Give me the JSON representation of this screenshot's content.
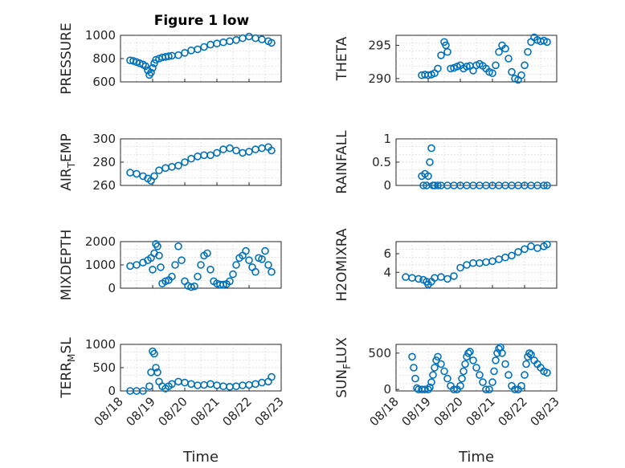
{
  "figure": {
    "title": "Figure 1 low",
    "marker_color": "#0072BD",
    "xlabel": "Time",
    "x_tick_labels": [
      "08/18",
      "08/19",
      "08/20",
      "08/21",
      "08/22",
      "08/23"
    ]
  },
  "chart_data": [
    {
      "type": "scatter",
      "ylabel": "PRESSURE",
      "title": "Figure 1 low",
      "xlim": [
        0,
        5
      ],
      "ylim": [
        600,
        1000
      ],
      "yticks": [
        600,
        800,
        1000
      ],
      "grid": true,
      "x": [
        0.3,
        0.4,
        0.5,
        0.6,
        0.7,
        0.78,
        0.85,
        0.9,
        0.95,
        1.0,
        1.05,
        1.1,
        1.2,
        1.3,
        1.4,
        1.5,
        1.6,
        1.8,
        2.0,
        2.2,
        2.4,
        2.6,
        2.8,
        3.0,
        3.2,
        3.4,
        3.6,
        3.8,
        4.0,
        4.2,
        4.4,
        4.6,
        4.7
      ],
      "y": [
        785,
        780,
        770,
        760,
        750,
        735,
        700,
        660,
        680,
        720,
        760,
        790,
        800,
        810,
        815,
        820,
        825,
        830,
        850,
        870,
        880,
        900,
        920,
        930,
        940,
        950,
        960,
        975,
        990,
        975,
        965,
        950,
        935
      ]
    },
    {
      "type": "scatter",
      "ylabel": "THETA",
      "xlim": [
        0,
        5
      ],
      "ylim": [
        289.5,
        296.5
      ],
      "yticks": [
        290,
        295
      ],
      "grid": true,
      "x": [
        0.8,
        0.9,
        1.0,
        1.1,
        1.2,
        1.3,
        1.4,
        1.5,
        1.55,
        1.6,
        1.7,
        1.8,
        1.9,
        2.0,
        2.1,
        2.2,
        2.3,
        2.4,
        2.5,
        2.6,
        2.7,
        2.8,
        2.9,
        3.0,
        3.1,
        3.2,
        3.3,
        3.4,
        3.5,
        3.6,
        3.7,
        3.8,
        3.9,
        4.0,
        4.1,
        4.2,
        4.3,
        4.4,
        4.5,
        4.6,
        4.7
      ],
      "y": [
        290.5,
        290.6,
        290.5,
        290.6,
        290.8,
        291.5,
        293.5,
        295.5,
        295.0,
        294.0,
        291.5,
        291.6,
        291.8,
        292.0,
        291.5,
        291.8,
        291.9,
        291.2,
        292.0,
        292.2,
        291.9,
        291.5,
        291.0,
        290.8,
        292.0,
        294.0,
        295.0,
        294.5,
        293.0,
        291.0,
        290.0,
        289.8,
        290.5,
        292.0,
        294.0,
        295.5,
        296.2,
        295.8,
        295.6,
        295.7,
        295.5
      ]
    },
    {
      "type": "scatter",
      "ylabel": "AIR_TEMP",
      "xlim": [
        0,
        5
      ],
      "ylim": [
        260,
        300
      ],
      "yticks": [
        260,
        280,
        300
      ],
      "grid": true,
      "x": [
        0.3,
        0.5,
        0.7,
        0.85,
        0.95,
        1.05,
        1.2,
        1.4,
        1.6,
        1.8,
        2.0,
        2.2,
        2.4,
        2.6,
        2.8,
        3.0,
        3.2,
        3.4,
        3.6,
        3.8,
        4.0,
        4.2,
        4.4,
        4.6,
        4.7
      ],
      "y": [
        271,
        270,
        268,
        266,
        264,
        268,
        273,
        275,
        276,
        277,
        280,
        283,
        285,
        286,
        286,
        288,
        291,
        292,
        290,
        288,
        289,
        291,
        292,
        293,
        290
      ]
    },
    {
      "type": "scatter",
      "ylabel": "RAINFALL",
      "xlim": [
        0,
        5
      ],
      "ylim": [
        0,
        1
      ],
      "yticks": [
        0,
        0.5,
        1
      ],
      "grid": true,
      "x": [
        0.8,
        0.85,
        0.9,
        0.95,
        1.0,
        1.05,
        1.1,
        1.15,
        1.2,
        1.3,
        1.4,
        1.6,
        1.8,
        2.0,
        2.2,
        2.4,
        2.6,
        2.8,
        3.0,
        3.2,
        3.4,
        3.6,
        3.8,
        4.0,
        4.2,
        4.4,
        4.6,
        4.7
      ],
      "y": [
        0.2,
        0,
        0.25,
        0,
        0.2,
        0.5,
        0.8,
        0,
        0,
        0,
        0,
        0,
        0,
        0,
        0,
        0,
        0,
        0,
        0,
        0,
        0,
        0,
        0,
        0,
        0,
        0,
        0,
        0
      ]
    },
    {
      "type": "scatter",
      "ylabel": "MIXDEPTH",
      "xlim": [
        0,
        5
      ],
      "ylim": [
        0,
        2000
      ],
      "yticks": [
        0,
        1000,
        2000
      ],
      "grid": true,
      "x": [
        0.3,
        0.5,
        0.7,
        0.85,
        0.95,
        1.0,
        1.05,
        1.1,
        1.15,
        1.2,
        1.25,
        1.3,
        1.4,
        1.5,
        1.6,
        1.7,
        1.8,
        1.9,
        2.0,
        2.1,
        2.2,
        2.3,
        2.4,
        2.5,
        2.6,
        2.7,
        2.8,
        2.9,
        3.0,
        3.1,
        3.2,
        3.3,
        3.4,
        3.5,
        3.6,
        3.7,
        3.8,
        3.9,
        4.0,
        4.1,
        4.2,
        4.3,
        4.4,
        4.5,
        4.6,
        4.7
      ],
      "y": [
        950,
        1000,
        1100,
        1200,
        1300,
        800,
        1500,
        1900,
        1800,
        1400,
        900,
        200,
        300,
        350,
        500,
        1000,
        1800,
        1200,
        300,
        100,
        50,
        80,
        500,
        1000,
        1400,
        1500,
        800,
        300,
        200,
        150,
        150,
        180,
        300,
        600,
        1000,
        1300,
        1400,
        1600,
        1200,
        900,
        700,
        1300,
        1250,
        1600,
        1000,
        700
      ]
    },
    {
      "type": "scatter",
      "ylabel": "H2OMIXRA",
      "xlim": [
        0,
        5
      ],
      "ylim": [
        2.3,
        7.3
      ],
      "yticks": [
        4,
        6
      ],
      "grid": true,
      "x": [
        0.3,
        0.5,
        0.7,
        0.85,
        0.95,
        1.0,
        1.1,
        1.2,
        1.4,
        1.6,
        1.8,
        2.0,
        2.2,
        2.4,
        2.6,
        2.8,
        3.0,
        3.2,
        3.4,
        3.6,
        3.8,
        4.0,
        4.2,
        4.4,
        4.6,
        4.7
      ],
      "y": [
        3.5,
        3.4,
        3.3,
        3.2,
        3.0,
        2.7,
        3.0,
        3.4,
        3.5,
        3.3,
        3.6,
        4.5,
        4.8,
        5.0,
        5.0,
        5.1,
        5.2,
        5.4,
        5.6,
        5.8,
        6.2,
        6.5,
        6.8,
        6.6,
        6.8,
        7.0
      ]
    },
    {
      "type": "scatter",
      "ylabel": "TERR_MSL",
      "xlim": [
        0,
        5
      ],
      "ylim": [
        0,
        1000
      ],
      "yticks": [
        0,
        500,
        1000
      ],
      "grid": true,
      "x": [
        0.3,
        0.5,
        0.7,
        0.9,
        0.95,
        1.0,
        1.05,
        1.1,
        1.15,
        1.2,
        1.3,
        1.4,
        1.5,
        1.6,
        1.8,
        2.0,
        2.2,
        2.4,
        2.6,
        2.8,
        3.0,
        3.2,
        3.4,
        3.6,
        3.8,
        4.0,
        4.2,
        4.4,
        4.6,
        4.7
      ],
      "y": [
        0,
        0,
        0,
        100,
        400,
        850,
        800,
        500,
        400,
        200,
        100,
        50,
        100,
        150,
        200,
        180,
        150,
        120,
        130,
        150,
        120,
        100,
        90,
        100,
        120,
        130,
        150,
        180,
        200,
        300
      ]
    },
    {
      "type": "scatter",
      "ylabel": "SUN_FLUX",
      "xlim": [
        0,
        5
      ],
      "ylim": [
        -20,
        620
      ],
      "yticks": [
        0,
        500
      ],
      "grid": true,
      "x": [
        0.5,
        0.55,
        0.6,
        0.65,
        0.7,
        0.8,
        0.9,
        1.0,
        1.05,
        1.1,
        1.15,
        1.2,
        1.25,
        1.3,
        1.4,
        1.5,
        1.6,
        1.7,
        1.8,
        1.9,
        2.0,
        2.05,
        2.1,
        2.15,
        2.2,
        2.25,
        2.3,
        2.4,
        2.5,
        2.6,
        2.7,
        2.8,
        2.9,
        3.0,
        3.05,
        3.1,
        3.15,
        3.2,
        3.25,
        3.3,
        3.4,
        3.5,
        3.6,
        3.7,
        3.8,
        3.9,
        4.0,
        4.05,
        4.1,
        4.15,
        4.2,
        4.3,
        4.4,
        4.5,
        4.6,
        4.7
      ],
      "y": [
        450,
        300,
        150,
        20,
        0,
        0,
        0,
        0,
        30,
        100,
        200,
        300,
        400,
        450,
        350,
        250,
        150,
        50,
        0,
        0,
        50,
        150,
        250,
        350,
        450,
        500,
        520,
        400,
        300,
        200,
        100,
        0,
        0,
        100,
        250,
        400,
        500,
        560,
        580,
        500,
        350,
        200,
        50,
        0,
        0,
        50,
        200,
        350,
        450,
        500,
        480,
        400,
        350,
        300,
        250,
        230
      ]
    }
  ]
}
